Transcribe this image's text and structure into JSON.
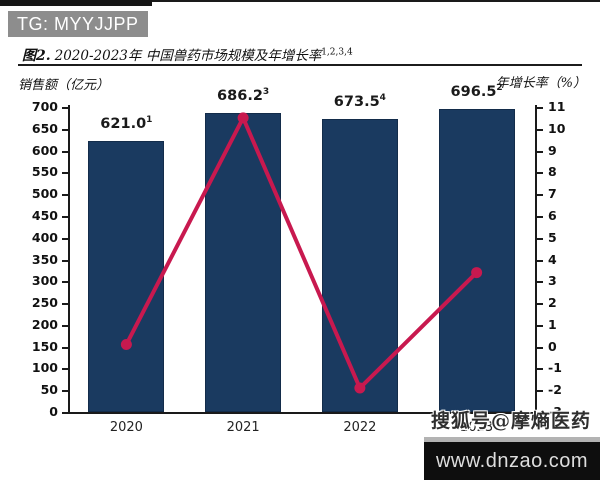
{
  "overlay": {
    "tg_badge": "TG: MYYJJPP",
    "sohu_watermark": "搜狐号@摩熵医药",
    "website": "www.dnzao.com"
  },
  "chart_data": {
    "type": "bar+line",
    "title_prefix": "图2.",
    "title": "2020-2023年 中国兽药市场规模及年增长率",
    "title_superscript": "1,2,3,4",
    "left_axis_label": "销售额（亿元）",
    "right_axis_label": "年增长率（%）",
    "categories": [
      "2020",
      "2021",
      "2022",
      "2023"
    ],
    "series": [
      {
        "name": "销售额(亿元)",
        "type": "bar",
        "axis": "left",
        "values": [
          621.0,
          686.2,
          673.5,
          696.5
        ],
        "label_superscripts": [
          "1",
          "3",
          "4",
          "2"
        ],
        "color": "#1a3a60"
      },
      {
        "name": "年增长率(%)",
        "type": "line",
        "axis": "right",
        "values": [
          0.1,
          10.5,
          -1.9,
          3.4
        ],
        "color": "#c8194f"
      }
    ],
    "left_axis": {
      "min": 0,
      "max": 700,
      "step": 50
    },
    "right_axis": {
      "min": -3,
      "max": 11,
      "step": 1
    },
    "legend_position": "none",
    "grid": false
  }
}
